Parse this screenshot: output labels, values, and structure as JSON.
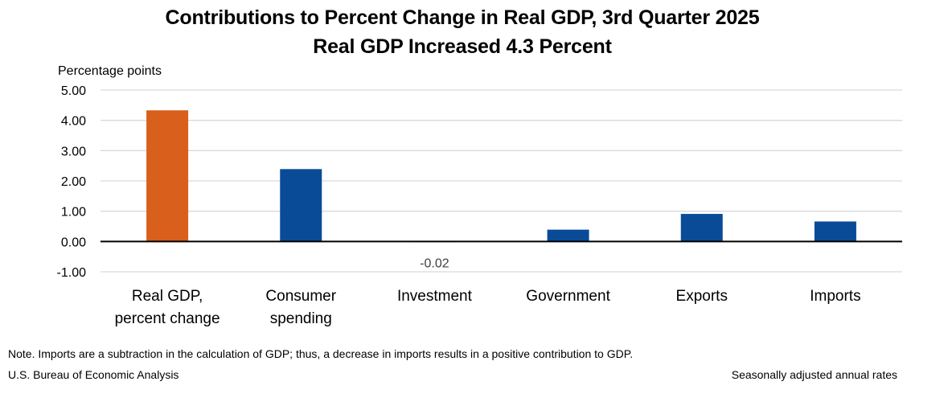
{
  "header": {
    "title": "Contributions to Percent Change in Real GDP, 3rd Quarter 2025",
    "subtitle": "Real GDP Increased 4.3 Percent"
  },
  "footer": {
    "note": "Note. Imports are a subtraction in the calculation of GDP; thus, a decrease in imports results in a positive contribution to GDP.",
    "source": "U.S. Bureau of Economic Analysis",
    "rates": "Seasonally adjusted annual rates"
  },
  "chart_data": {
    "type": "bar",
    "title": "Contributions to Percent Change in Real GDP, 3rd Quarter 2025",
    "subtitle": "Real GDP Increased 4.3 Percent",
    "ylabel": "Percentage points",
    "xlabel": "",
    "categories": [
      [
        "Real GDP,",
        "percent change"
      ],
      [
        "Consumer",
        "spending"
      ],
      [
        "Investment"
      ],
      [
        "Government"
      ],
      [
        "Exports"
      ],
      [
        "Imports"
      ]
    ],
    "values": [
      4.33,
      2.39,
      -0.02,
      0.39,
      0.91,
      0.66
    ],
    "data_labels": [
      null,
      null,
      "-0.02",
      null,
      null,
      null
    ],
    "colors": [
      "#D95F1C",
      "#0A4B98",
      "#0A4B98",
      "#0A4B98",
      "#0A4B98",
      "#0A4B98"
    ],
    "gridline_color": "#D9D9D9",
    "ylim": [
      -1.0,
      5.0
    ],
    "yticks": [
      -1.0,
      0.0,
      1.0,
      2.0,
      3.0,
      4.0,
      5.0
    ],
    "ytick_labels": [
      "-1.00",
      "0.00",
      "1.00",
      "2.00",
      "3.00",
      "4.00",
      "5.00"
    ],
    "grid": true,
    "legend": "none"
  }
}
